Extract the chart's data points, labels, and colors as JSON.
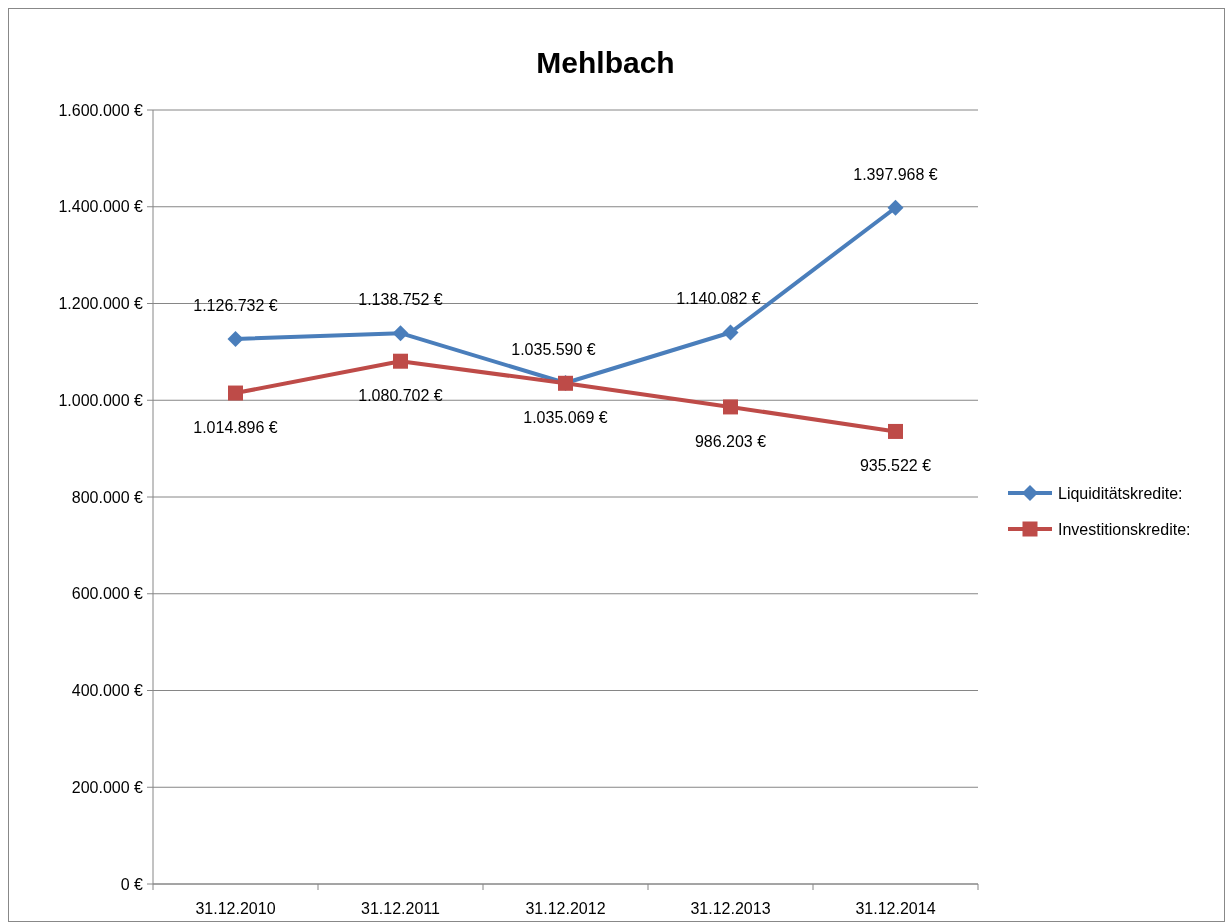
{
  "chart_data": {
    "type": "line",
    "title": "Mehlbach",
    "categories": [
      "31.12.2010",
      "31.12.2011",
      "31.12.2012",
      "31.12.2013",
      "31.12.2014"
    ],
    "series": [
      {
        "name": "Liquiditätskredite:",
        "color": "#4a7ebb",
        "marker": "diamond",
        "values": [
          1126732,
          1138752,
          1035590,
          1140082,
          1397968
        ],
        "value_labels": [
          "1.126.732 €",
          "1.138.752 €",
          "1.035.590 €",
          "1.140.082 €",
          "1.397.968 €"
        ]
      },
      {
        "name": "Investitionskredite:",
        "color": "#be4b48",
        "marker": "square",
        "values": [
          1014896,
          1080702,
          1035069,
          986203,
          935522
        ],
        "value_labels": [
          "1.014.896 €",
          "1.080.702 €",
          "1.035.069 €",
          "986.203 €",
          "935.522 €"
        ]
      }
    ],
    "ylim": [
      0,
      1600000
    ],
    "yticks": [
      {
        "value": 0,
        "label": "0 €"
      },
      {
        "value": 200000,
        "label": "200.000 €"
      },
      {
        "value": 400000,
        "label": "400.000 €"
      },
      {
        "value": 600000,
        "label": "600.000 €"
      },
      {
        "value": 800000,
        "label": "800.000 €"
      },
      {
        "value": 1000000,
        "label": "1.000.000 €"
      },
      {
        "value": 1200000,
        "label": "1.200.000 €"
      },
      {
        "value": 1400000,
        "label": "1.400.000 €"
      },
      {
        "value": 1600000,
        "label": "1.600.000 €"
      }
    ],
    "grid": "y",
    "legend": "right",
    "line_style": "solid"
  }
}
